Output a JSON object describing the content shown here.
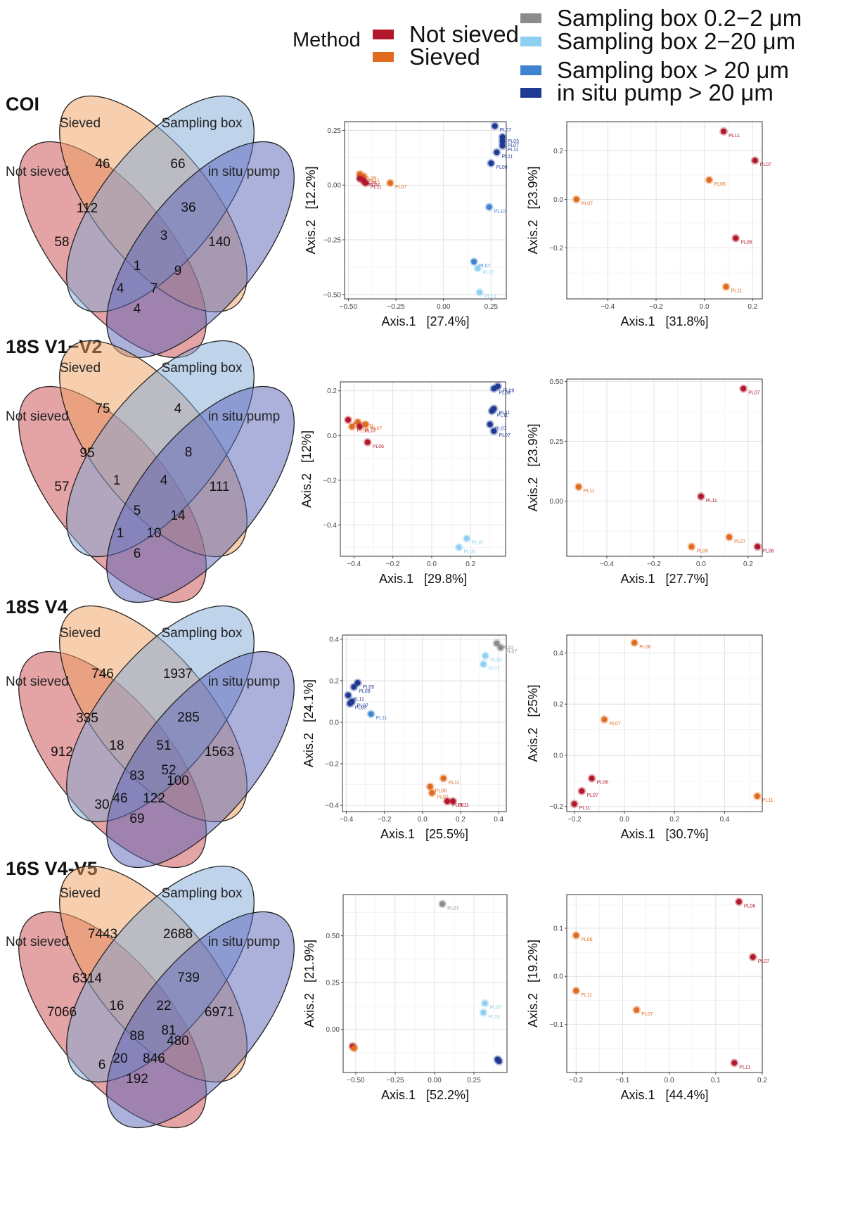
{
  "legend": {
    "method_title": "Method",
    "method_items": [
      {
        "label": "Not sieved",
        "color": "#b2182b"
      },
      {
        "label": "Sieved",
        "color": "#e06b1f"
      }
    ],
    "fraction_items": [
      {
        "label": "Sampling box 0.2−2 μm",
        "color": "#8c8c8c"
      },
      {
        "label": "Sampling box 2−20 μm",
        "color": "#8fd0f2"
      },
      {
        "label": "Sampling box > 20 μm",
        "color": "#3f84d0"
      },
      {
        "label": "in situ pump > 20 μm",
        "color": "#1f3a93"
      }
    ]
  },
  "panels": [
    {
      "marker": "COI",
      "venn": {
        "set_labels": [
          "Not sieved",
          "Sieved",
          "Sampling box",
          "in situ pump"
        ],
        "counts": {
          "A": "58",
          "B": "46",
          "C": "66",
          "D": "140",
          "AB": "112",
          "CD": "36",
          "BC": "3",
          "AD": "4",
          "ABC": "",
          "ABD": "4",
          "BCD": "9",
          "ACD": "7",
          "ABCD": "1",
          "BD": "",
          "AC": ""
        }
      }
    },
    {
      "marker": "18S V1−V2",
      "venn": {
        "set_labels": [
          "Not sieved",
          "Sieved",
          "Sampling box",
          "in situ pump"
        ],
        "counts": {
          "A": "57",
          "B": "75",
          "C": "4",
          "D": "111",
          "AB": "95",
          "CD": "8",
          "BC": "4",
          "AD": "6",
          "ABC": "1",
          "ABD": "1",
          "BCD": "14",
          "ACD": "10",
          "ABCD": "5",
          "BD": "",
          "AC": ""
        }
      }
    },
    {
      "marker": "18S V4",
      "venn": {
        "set_labels": [
          "Not sieved",
          "Sieved",
          "Sampling box",
          "in situ pump"
        ],
        "counts": {
          "A": "912",
          "B": "746",
          "C": "1937",
          "D": "1563",
          "AB": "335",
          "CD": "285",
          "BC": "51",
          "AD": "69",
          "ABC": "18",
          "ABD": "46",
          "BCD": "100",
          "ACD": "122",
          "ABCD": "83",
          "BD": "52",
          "AC": "30"
        }
      }
    },
    {
      "marker": "16S V4-V5",
      "venn": {
        "set_labels": [
          "Not sieved",
          "Sieved",
          "Sampling box",
          "in situ pump"
        ],
        "counts": {
          "A": "7066",
          "B": "7443",
          "C": "2688",
          "D": "6971",
          "AB": "6314",
          "CD": "739",
          "BC": "22",
          "AD": "192",
          "ABC": "16",
          "ABD": "20",
          "BCD": "480",
          "ACD": "846",
          "ABCD": "88",
          "BD": "81",
          "AC": "6"
        }
      }
    }
  ],
  "chart_data": [
    {
      "type": "scatter",
      "id": "coi-all",
      "xlabel": "Axis.1   [27.4%]",
      "ylabel": "Axis.2   [12.2%]",
      "xlim": [
        -0.52,
        0.33
      ],
      "ylim": [
        -0.52,
        0.29
      ],
      "xticks": [
        -0.5,
        -0.25,
        0.0,
        0.25
      ],
      "yticks": [
        -0.5,
        -0.25,
        0.0,
        0.25
      ],
      "xtick_labels": [
        "−0.50",
        "−0.25",
        "0.00",
        "0.25"
      ],
      "ytick_labels": [
        "−0.50",
        "−0.25",
        "0.00",
        "0.25"
      ],
      "points": [
        {
          "x": -0.44,
          "y": 0.05,
          "label": "PL06",
          "color": "#e06b1f"
        },
        {
          "x": -0.42,
          "y": 0.04,
          "label": "PL11",
          "color": "#e06b1f"
        },
        {
          "x": -0.44,
          "y": 0.03,
          "label": "PL06",
          "color": "#b2182b"
        },
        {
          "x": -0.42,
          "y": 0.02,
          "label": "PL07",
          "color": "#b2182b"
        },
        {
          "x": -0.41,
          "y": 0.01,
          "label": "PL11",
          "color": "#b2182b"
        },
        {
          "x": -0.28,
          "y": 0.01,
          "label": "PL07",
          "color": "#e06b1f"
        },
        {
          "x": 0.27,
          "y": 0.27,
          "label": "PL07",
          "color": "#1f3a93"
        },
        {
          "x": 0.31,
          "y": 0.22,
          "label": "PL03",
          "color": "#1f3a93"
        },
        {
          "x": 0.31,
          "y": 0.2,
          "label": "PL07",
          "color": "#1f3a93"
        },
        {
          "x": 0.31,
          "y": 0.18,
          "label": "PL11",
          "color": "#1f3a93"
        },
        {
          "x": 0.28,
          "y": 0.15,
          "label": "PL11",
          "color": "#1f3a93"
        },
        {
          "x": 0.25,
          "y": 0.1,
          "label": "PL09",
          "color": "#1f3a93"
        },
        {
          "x": 0.24,
          "y": -0.1,
          "label": "PL10",
          "color": "#3f84d0"
        },
        {
          "x": 0.16,
          "y": -0.35,
          "label": "PL07",
          "color": "#3f84d0"
        },
        {
          "x": 0.18,
          "y": -0.38,
          "label": "PL07",
          "color": "#8fd0f2"
        },
        {
          "x": 0.19,
          "y": -0.49,
          "label": "PL10",
          "color": "#8fd0f2"
        }
      ]
    },
    {
      "type": "scatter",
      "id": "coi-method",
      "xlabel": "Axis.1   [31.8%]",
      "ylabel": "Axis.2   [23.9%]",
      "xlim": [
        -0.57,
        0.24
      ],
      "ylim": [
        -0.41,
        0.32
      ],
      "xticks": [
        -0.4,
        -0.2,
        0.0,
        0.2
      ],
      "yticks": [
        -0.2,
        0.0,
        0.2
      ],
      "xtick_labels": [
        "−0.4",
        "−0.2",
        "0.0",
        "0.2"
      ],
      "ytick_labels": [
        "−0.2",
        "0.0",
        "0.2"
      ],
      "points": [
        {
          "x": 0.08,
          "y": 0.28,
          "label": "PL11",
          "color": "#b2182b"
        },
        {
          "x": 0.21,
          "y": 0.16,
          "label": "PL07",
          "color": "#b2182b"
        },
        {
          "x": 0.02,
          "y": 0.08,
          "label": "PL06",
          "color": "#e06b1f"
        },
        {
          "x": -0.53,
          "y": 0.0,
          "label": "PL07",
          "color": "#e06b1f"
        },
        {
          "x": 0.13,
          "y": -0.16,
          "label": "PL06",
          "color": "#b2182b"
        },
        {
          "x": 0.09,
          "y": -0.36,
          "label": "PL11",
          "color": "#e06b1f"
        }
      ]
    },
    {
      "type": "scatter",
      "id": "18s12-all",
      "xlabel": "Axis.1   [29.8%]",
      "ylabel": "Axis.2   [12%]",
      "xlim": [
        -0.47,
        0.38
      ],
      "ylim": [
        -0.54,
        0.24
      ],
      "xticks": [
        -0.4,
        -0.2,
        0.0,
        0.2
      ],
      "yticks": [
        -0.4,
        -0.2,
        0.0,
        0.2
      ],
      "xtick_labels": [
        "−0.4",
        "−0.2",
        "0.0",
        "0.2"
      ],
      "ytick_labels": [
        "−0.4",
        "−0.2",
        "0.0",
        "0.2"
      ],
      "points": [
        {
          "x": 0.34,
          "y": 0.22,
          "label": "PL09",
          "color": "#1f3a93"
        },
        {
          "x": 0.32,
          "y": 0.21,
          "label": "PL09",
          "color": "#1f3a93"
        },
        {
          "x": 0.32,
          "y": 0.12,
          "label": "PL11",
          "color": "#1f3a93"
        },
        {
          "x": 0.31,
          "y": 0.11,
          "label": "PL11",
          "color": "#1f3a93"
        },
        {
          "x": 0.3,
          "y": 0.05,
          "label": "PL07",
          "color": "#1f3a93"
        },
        {
          "x": 0.32,
          "y": 0.02,
          "label": "PL07",
          "color": "#1f3a93"
        },
        {
          "x": -0.43,
          "y": 0.07,
          "label": "PL11",
          "color": "#b2182b"
        },
        {
          "x": -0.38,
          "y": 0.06,
          "label": "PL11",
          "color": "#e06b1f"
        },
        {
          "x": -0.41,
          "y": 0.04,
          "label": "PL06",
          "color": "#e06b1f"
        },
        {
          "x": -0.37,
          "y": 0.04,
          "label": "PL07",
          "color": "#b2182b"
        },
        {
          "x": -0.34,
          "y": 0.05,
          "label": "PL07",
          "color": "#e06b1f"
        },
        {
          "x": -0.33,
          "y": -0.03,
          "label": "PL06",
          "color": "#b2182b"
        },
        {
          "x": 0.18,
          "y": -0.46,
          "label": "PL10",
          "color": "#8fd0f2"
        },
        {
          "x": 0.14,
          "y": -0.5,
          "label": "PL09",
          "color": "#8fd0f2"
        }
      ]
    },
    {
      "type": "scatter",
      "id": "18s12-method",
      "xlabel": "Axis.1   [27.7%]",
      "ylabel": "Axis.2   [23.9%]",
      "xlim": [
        -0.57,
        0.26
      ],
      "ylim": [
        -0.23,
        0.51
      ],
      "xticks": [
        -0.4,
        -0.2,
        0.0,
        0.2
      ],
      "yticks": [
        0.0,
        0.25,
        0.5
      ],
      "xtick_labels": [
        "−0.4",
        "−0.2",
        "0.0",
        "0.2"
      ],
      "ytick_labels": [
        "0.00",
        "0.25",
        "0.50"
      ],
      "points": [
        {
          "x": 0.18,
          "y": 0.47,
          "label": "PL07",
          "color": "#b2182b"
        },
        {
          "x": -0.52,
          "y": 0.06,
          "label": "PL11",
          "color": "#e06b1f"
        },
        {
          "x": 0.0,
          "y": 0.02,
          "label": "PL11",
          "color": "#b2182b"
        },
        {
          "x": 0.12,
          "y": -0.15,
          "label": "PL07",
          "color": "#e06b1f"
        },
        {
          "x": -0.04,
          "y": -0.19,
          "label": "PL06",
          "color": "#e06b1f"
        },
        {
          "x": 0.24,
          "y": -0.19,
          "label": "PL06",
          "color": "#b2182b"
        }
      ]
    },
    {
      "type": "scatter",
      "id": "18sv4-all",
      "xlabel": "Axis.1   [25.5%]",
      "ylabel": "Axis.2   [24.1%]",
      "xlim": [
        -0.42,
        0.44
      ],
      "ylim": [
        -0.43,
        0.42
      ],
      "xticks": [
        -0.4,
        -0.2,
        0.0,
        0.2,
        0.4
      ],
      "yticks": [
        -0.4,
        -0.2,
        0.0,
        0.2,
        0.4
      ],
      "xtick_labels": [
        "−0.4",
        "−0.2",
        "0.0",
        "0.2",
        "0.4"
      ],
      "ytick_labels": [
        "−0.4",
        "−0.2",
        "0.0",
        "0.2",
        "0.4"
      ],
      "points": [
        {
          "x": 0.39,
          "y": 0.38,
          "label": "PL10",
          "color": "#8c8c8c"
        },
        {
          "x": 0.41,
          "y": 0.36,
          "label": "PL07",
          "color": "#8c8c8c"
        },
        {
          "x": 0.33,
          "y": 0.32,
          "label": "PL10",
          "color": "#8fd0f2"
        },
        {
          "x": 0.32,
          "y": 0.28,
          "label": "PL07",
          "color": "#8fd0f2"
        },
        {
          "x": -0.34,
          "y": 0.19,
          "label": "PL09",
          "color": "#1f3a93"
        },
        {
          "x": -0.36,
          "y": 0.17,
          "label": "PL09",
          "color": "#1f3a93"
        },
        {
          "x": -0.39,
          "y": 0.13,
          "label": "PL11",
          "color": "#1f3a93"
        },
        {
          "x": -0.37,
          "y": 0.1,
          "label": "PL07",
          "color": "#1f3a93"
        },
        {
          "x": -0.38,
          "y": 0.09,
          "label": "PL07",
          "color": "#1f3a93"
        },
        {
          "x": -0.27,
          "y": 0.04,
          "label": "PL11",
          "color": "#3f84d0"
        },
        {
          "x": 0.11,
          "y": -0.27,
          "label": "PL11",
          "color": "#e06b1f"
        },
        {
          "x": 0.04,
          "y": -0.31,
          "label": "PL06",
          "color": "#e06b1f"
        },
        {
          "x": 0.05,
          "y": -0.34,
          "label": "PL07",
          "color": "#e06b1f"
        },
        {
          "x": 0.13,
          "y": -0.38,
          "label": "PL06",
          "color": "#b2182b"
        },
        {
          "x": 0.16,
          "y": -0.38,
          "label": "PL11",
          "color": "#b2182b"
        }
      ]
    },
    {
      "type": "scatter",
      "id": "18sv4-method",
      "xlabel": "Axis.1   [30.7%]",
      "ylabel": "Axis.2   [25%]",
      "xlim": [
        -0.23,
        0.55
      ],
      "ylim": [
        -0.22,
        0.47
      ],
      "xticks": [
        -0.2,
        0.0,
        0.2,
        0.4
      ],
      "yticks": [
        -0.2,
        0.0,
        0.2,
        0.4
      ],
      "xtick_labels": [
        "−0.2",
        "0.0",
        "0.2",
        "0.4"
      ],
      "ytick_labels": [
        "−0.2",
        "0.0",
        "0.2",
        "0.4"
      ],
      "points": [
        {
          "x": 0.04,
          "y": 0.44,
          "label": "PL06",
          "color": "#e06b1f"
        },
        {
          "x": -0.08,
          "y": 0.14,
          "label": "PL07",
          "color": "#e06b1f"
        },
        {
          "x": -0.13,
          "y": -0.09,
          "label": "PL06",
          "color": "#b2182b"
        },
        {
          "x": -0.17,
          "y": -0.14,
          "label": "PL07",
          "color": "#b2182b"
        },
        {
          "x": -0.2,
          "y": -0.19,
          "label": "PL11",
          "color": "#b2182b"
        },
        {
          "x": 0.53,
          "y": -0.16,
          "label": "PL11",
          "color": "#e06b1f"
        }
      ]
    },
    {
      "type": "scatter",
      "id": "16s-all",
      "xlabel": "Axis.1   [52.2%]",
      "ylabel": "Axis.2   [21.9%]",
      "xlim": [
        -0.58,
        0.46
      ],
      "ylim": [
        -0.23,
        0.72
      ],
      "xticks": [
        -0.5,
        -0.25,
        0.0,
        0.25
      ],
      "yticks": [
        0.0,
        0.25,
        0.5
      ],
      "xtick_labels": [
        "−0.50",
        "−0.25",
        "0.00",
        "0.25"
      ],
      "ytick_labels": [
        "0.00",
        "0.25",
        "0.50"
      ],
      "points": [
        {
          "x": 0.05,
          "y": 0.67,
          "label": "PL07",
          "color": "#8c8c8c"
        },
        {
          "x": 0.32,
          "y": 0.14,
          "label": "PL07",
          "color": "#8fd0f2"
        },
        {
          "x": 0.31,
          "y": 0.09,
          "label": "PL10",
          "color": "#8fd0f2"
        },
        {
          "x": -0.52,
          "y": -0.09,
          "label": "",
          "color": "#b2182b"
        },
        {
          "x": -0.51,
          "y": -0.1,
          "label": "",
          "color": "#e06b1f"
        },
        {
          "x": 0.4,
          "y": -0.16,
          "label": "",
          "color": "#1f3a93"
        },
        {
          "x": 0.41,
          "y": -0.17,
          "label": "",
          "color": "#1f3a93"
        }
      ]
    },
    {
      "type": "scatter",
      "id": "16s-method",
      "xlabel": "Axis.1   [44.4%]",
      "ylabel": "Axis.2   [19.2%]",
      "xlim": [
        -0.22,
        0.2
      ],
      "ylim": [
        -0.2,
        0.17
      ],
      "xticks": [
        -0.2,
        -0.1,
        0.0,
        0.1,
        0.2
      ],
      "yticks": [
        -0.1,
        0.0,
        0.1
      ],
      "xtick_labels": [
        "−0.2",
        "−0.1",
        "0.0",
        "0.1",
        "0.2"
      ],
      "ytick_labels": [
        "−0.1",
        "0.0",
        "0.1"
      ],
      "points": [
        {
          "x": 0.15,
          "y": 0.155,
          "label": "PL06",
          "color": "#b2182b"
        },
        {
          "x": -0.2,
          "y": 0.085,
          "label": "PL06",
          "color": "#e06b1f"
        },
        {
          "x": 0.18,
          "y": 0.04,
          "label": "PL07",
          "color": "#b2182b"
        },
        {
          "x": -0.2,
          "y": -0.03,
          "label": "PL11",
          "color": "#e06b1f"
        },
        {
          "x": -0.07,
          "y": -0.07,
          "label": "PL07",
          "color": "#e06b1f"
        },
        {
          "x": 0.14,
          "y": -0.18,
          "label": "PL11",
          "color": "#b2182b"
        }
      ]
    }
  ]
}
